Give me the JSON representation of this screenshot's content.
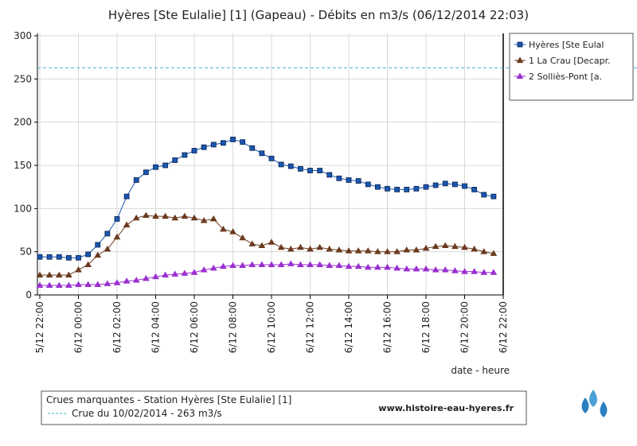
{
  "chart_data": {
    "type": "line",
    "title": "Hyères [Ste Eulalie] [1] (Gapeau) - Débits en m3/s (06/12/2014 22:03)",
    "x_label": "date - heure",
    "categories": [
      "5/12 22:00",
      null,
      null,
      null,
      "6/12 00:00",
      null,
      null,
      null,
      "6/12 02:00",
      null,
      null,
      null,
      "6/12 04:00",
      null,
      null,
      null,
      "6/12 06:00",
      null,
      null,
      null,
      "6/12 08:00",
      null,
      null,
      null,
      "6/12 10:00",
      null,
      null,
      null,
      "6/12 12:00",
      null,
      null,
      null,
      "6/12 14:00",
      null,
      null,
      null,
      "6/12 16:00",
      null,
      null,
      null,
      "6/12 18:00",
      null,
      null,
      null,
      "6/12 20:00",
      null,
      null,
      null,
      "6/12 22:00"
    ],
    "series": [
      {
        "name": "Hyères [Ste Eulal",
        "color": "#1a56b0",
        "marker": "square",
        "values": [
          44,
          44,
          44,
          43,
          43,
          47,
          58,
          71,
          88,
          114,
          133,
          142,
          148,
          150,
          156,
          162,
          167,
          171,
          174,
          176,
          180,
          177,
          170,
          164,
          158,
          151,
          149,
          146,
          144,
          144,
          139,
          135,
          133,
          132,
          128,
          125,
          123,
          122,
          122,
          123,
          125,
          127,
          129,
          128,
          126,
          122,
          116,
          114,
          null
        ]
      },
      {
        "name": "1 La Crau [Decapr.",
        "color": "#6b3a1f",
        "marker": "triangle",
        "values": [
          23,
          23,
          23,
          23,
          29,
          35,
          46,
          53,
          67,
          81,
          89,
          92,
          91,
          91,
          89,
          91,
          89,
          86,
          88,
          76,
          73,
          66,
          59,
          57,
          61,
          55,
          53,
          55,
          53,
          55,
          53,
          52,
          51,
          51,
          51,
          50,
          50,
          50,
          52,
          52,
          54,
          56,
          57,
          56,
          55,
          53,
          50,
          48,
          null
        ]
      },
      {
        "name": "2 Solliès-Pont [a.",
        "color": "#9a2fd0",
        "marker": "triangle",
        "values": [
          11,
          11,
          11,
          11,
          12,
          12,
          12,
          13,
          14,
          16,
          17,
          19,
          21,
          23,
          24,
          25,
          26,
          29,
          31,
          33,
          34,
          34,
          35,
          35,
          35,
          35,
          36,
          35,
          35,
          35,
          34,
          34,
          33,
          33,
          32,
          32,
          32,
          31,
          30,
          30,
          30,
          29,
          29,
          28,
          27,
          27,
          26,
          26,
          null
        ]
      }
    ],
    "ylim": [
      0,
      300
    ],
    "yticks": [
      0,
      50,
      100,
      150,
      200,
      250,
      300
    ],
    "grid": true,
    "legend": "right",
    "reference_box": {
      "title": "Crues marquantes - Station Hyères [Ste Eulalie] [1]",
      "line": {
        "label": "Crue du 10/02/2014 - 263 m3/s",
        "value": 263,
        "color": "#3bb4c8"
      },
      "site": "www.histoire-eau-hyeres.fr"
    }
  }
}
